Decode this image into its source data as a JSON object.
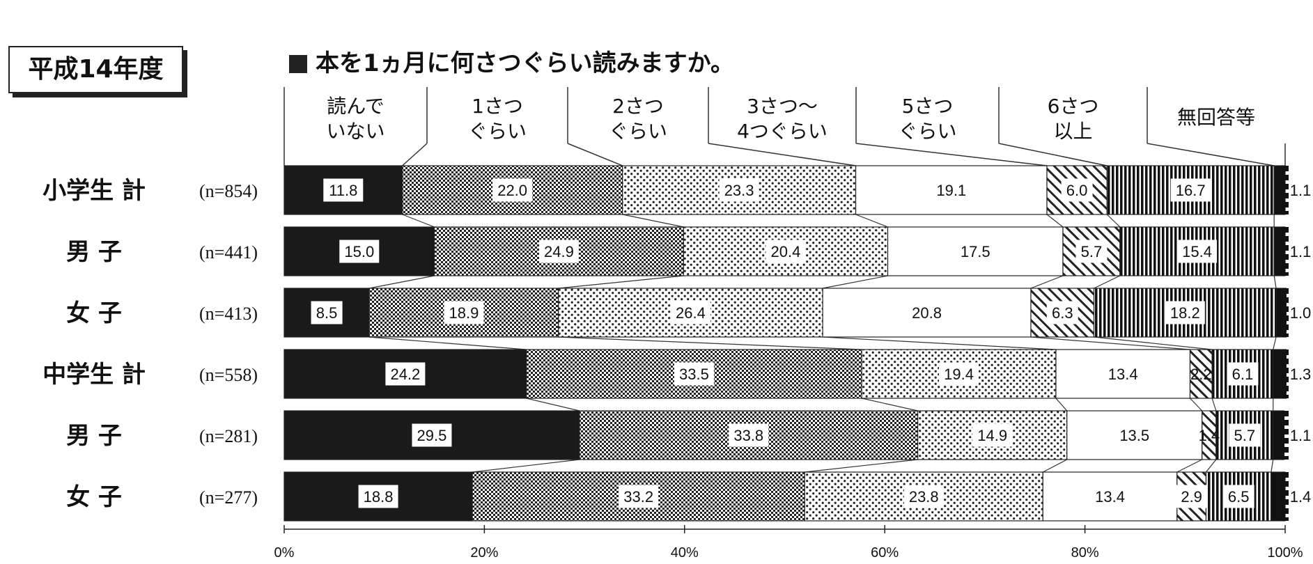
{
  "year_label": "平成14年度",
  "question": "本を1ヵ月に何さつぐらい読みますか。",
  "chart_data": {
    "type": "bar",
    "orientation": "horizontal",
    "stacked": "100%",
    "title": "本を1ヵ月に何さつぐらい読みますか。",
    "categories": [
      {
        "label": "小学生 計",
        "n": "(n=854)"
      },
      {
        "label": "男 子",
        "n": "(n=441)"
      },
      {
        "label": "女 子",
        "n": "(n=413)"
      },
      {
        "label": "中学生 計",
        "n": "(n=558)"
      },
      {
        "label": "男 子",
        "n": "(n=281)"
      },
      {
        "label": "女 子",
        "n": "(n=277)"
      }
    ],
    "series": [
      {
        "name": [
          "読んで",
          "いない"
        ],
        "values": [
          11.8,
          15.0,
          8.5,
          24.2,
          29.5,
          18.8
        ],
        "color": "#1a1a1a"
      },
      {
        "name": [
          "1さつ",
          "ぐらい"
        ],
        "values": [
          22.0,
          24.9,
          18.9,
          33.5,
          33.8,
          33.2
        ],
        "color": "#555555"
      },
      {
        "name": [
          "2さつ",
          "ぐらい"
        ],
        "values": [
          23.3,
          20.4,
          26.4,
          19.4,
          14.9,
          23.8
        ],
        "color": "#dddddd"
      },
      {
        "name": [
          "3さつ～",
          "4つぐらい"
        ],
        "values": [
          19.1,
          17.5,
          20.8,
          13.4,
          13.5,
          13.4
        ],
        "color": "#ffffff"
      },
      {
        "name": [
          "5さつ",
          "ぐらい"
        ],
        "values": [
          6.0,
          5.7,
          6.3,
          2.2,
          1.4,
          2.9
        ],
        "color": "#eeeeee"
      },
      {
        "name": [
          "6さつ",
          "以上"
        ],
        "values": [
          16.7,
          15.4,
          18.2,
          6.1,
          5.7,
          6.5
        ],
        "color": "#333333"
      },
      {
        "name": [
          "無回答等"
        ],
        "values": [
          1.1,
          1.1,
          1.0,
          1.3,
          1.1,
          1.4
        ],
        "color": "#111111"
      }
    ],
    "xlim": [
      0,
      100
    ],
    "xticks": [
      "0%",
      "20%",
      "40%",
      "60%",
      "80%",
      "100%"
    ],
    "grid": false
  }
}
